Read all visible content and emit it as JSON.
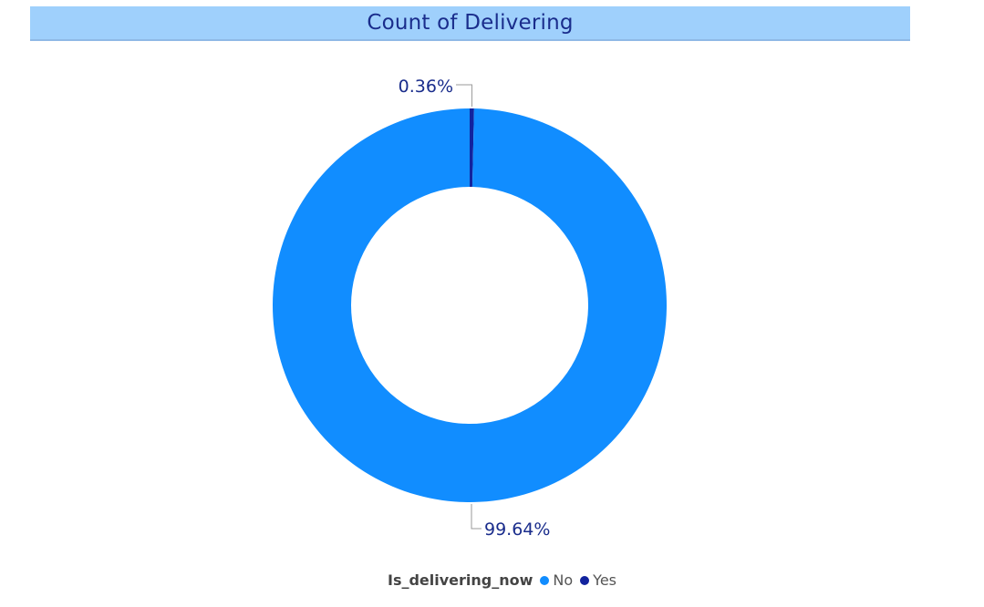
{
  "chart_data": {
    "type": "pie",
    "title": "Count of Delivering",
    "legend_title": "Is_delivering_now",
    "legend_position": "bottom-center",
    "donut": true,
    "slices": [
      {
        "label": "No",
        "value": 99.64,
        "display": "99.64%",
        "color": "#118dff"
      },
      {
        "label": "Yes",
        "value": 0.36,
        "display": "0.36%",
        "color": "#12239e"
      }
    ]
  }
}
